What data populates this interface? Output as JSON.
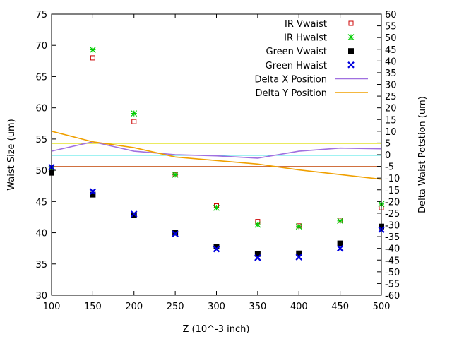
{
  "chart_data": {
    "type": "scatter",
    "xlabel": "Z (10^-3 inch)",
    "ylabel": "Waist Size (um)",
    "y2label": "Delta Waist Potstion (um)",
    "xlim": [
      100,
      500
    ],
    "ylim": [
      30,
      75
    ],
    "y2lim": [
      -60,
      60
    ],
    "x_ticks": [
      100,
      150,
      200,
      250,
      300,
      350,
      400,
      450,
      500
    ],
    "y_ticks": [
      30,
      35,
      40,
      45,
      50,
      55,
      60,
      65,
      70,
      75
    ],
    "y2_ticks": [
      -60,
      -55,
      -50,
      -45,
      -40,
      -35,
      -30,
      -25,
      -20,
      -15,
      -10,
      -5,
      0,
      5,
      10,
      15,
      20,
      25,
      30,
      35,
      40,
      45,
      50,
      55,
      60
    ],
    "grid": false,
    "legend_position": "top-right",
    "series": [
      {
        "name": "IR Vwaist",
        "axis": "y",
        "marker": "open-square",
        "color": "#cc0000",
        "x": [
          100,
          150,
          200,
          250,
          300,
          350,
          400,
          450,
          500
        ],
        "y": [
          50.0,
          68.0,
          57.8,
          49.3,
          44.3,
          41.8,
          41.1,
          42.0,
          44.0
        ]
      },
      {
        "name": "IR Hwaist",
        "axis": "y",
        "marker": "asterisk",
        "color": "#00cc00",
        "x": [
          100,
          150,
          200,
          250,
          300,
          350,
          400,
          450,
          500
        ],
        "y": [
          50.2,
          69.3,
          59.1,
          49.3,
          44.0,
          41.3,
          41.0,
          41.9,
          44.6
        ]
      },
      {
        "name": "Green Vwaist",
        "axis": "y",
        "marker": "filled-square",
        "color": "#000000",
        "x": [
          100,
          150,
          200,
          250,
          300,
          350,
          400,
          450,
          500
        ],
        "y": [
          49.6,
          46.1,
          42.8,
          40.0,
          37.8,
          36.6,
          36.7,
          38.3,
          41.0
        ]
      },
      {
        "name": "Green Hwaist",
        "axis": "y",
        "marker": "cross",
        "color": "#0000dd",
        "x": [
          100,
          150,
          200,
          250,
          300,
          350,
          400,
          450,
          500
        ],
        "y": [
          50.5,
          46.6,
          43.0,
          39.8,
          37.4,
          36.0,
          36.1,
          37.5,
          40.5
        ]
      },
      {
        "name": "Delta X Position",
        "axis": "y2",
        "marker": "line",
        "color": "#a070e0",
        "x": [
          100,
          150,
          200,
          250,
          300,
          350,
          400,
          450,
          500
        ],
        "y": [
          1.5,
          5.5,
          1.5,
          0.0,
          -0.5,
          -1.5,
          1.5,
          2.8,
          2.5
        ]
      },
      {
        "name": "Delta Y Position",
        "axis": "y2",
        "marker": "line",
        "color": "#f0a000",
        "x": [
          100,
          150,
          200,
          250,
          300,
          350,
          400,
          450,
          500
        ],
        "y": [
          10.0,
          5.5,
          3.0,
          -1.0,
          -2.5,
          -4.0,
          -6.5,
          -8.5,
          -10.5
        ]
      }
    ],
    "reference_lines": [
      {
        "axis": "y",
        "value": 54.3,
        "color": "#dddd00"
      },
      {
        "axis": "y",
        "value": 52.4,
        "color": "#00dddd"
      },
      {
        "axis": "y",
        "value": 50.6,
        "color": "#c04000"
      }
    ]
  }
}
